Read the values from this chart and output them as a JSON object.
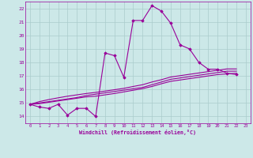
{
  "xlabel": "Windchill (Refroidissement éolien,°C)",
  "xlim": [
    -0.5,
    23.5
  ],
  "ylim": [
    13.5,
    22.5
  ],
  "yticks": [
    14,
    15,
    16,
    17,
    18,
    19,
    20,
    21,
    22
  ],
  "xticks": [
    0,
    1,
    2,
    3,
    4,
    5,
    6,
    7,
    8,
    9,
    10,
    11,
    12,
    13,
    14,
    15,
    16,
    17,
    18,
    19,
    20,
    21,
    22,
    23
  ],
  "bg_color": "#cce8e8",
  "grid_color": "#aacccc",
  "line_color": "#990099",
  "marker": "D",
  "markersize": 1.8,
  "linewidth": 0.8,
  "series": [
    [
      14.9,
      14.7,
      14.6,
      14.9,
      14.1,
      14.6,
      14.6,
      14.0,
      18.7,
      18.5,
      16.9,
      21.1,
      21.1,
      22.2,
      21.8,
      20.9,
      19.3,
      19.0,
      18.0,
      17.5,
      17.5,
      17.2,
      17.1
    ],
    [
      14.9,
      14.95,
      15.05,
      15.15,
      15.25,
      15.35,
      15.45,
      15.5,
      15.6,
      15.7,
      15.82,
      15.94,
      16.06,
      16.22,
      16.42,
      16.6,
      16.7,
      16.8,
      16.9,
      17.0,
      17.1,
      17.15,
      17.2
    ],
    [
      14.9,
      15.0,
      15.1,
      15.2,
      15.3,
      15.4,
      15.55,
      15.65,
      15.75,
      15.85,
      15.95,
      16.05,
      16.15,
      16.35,
      16.55,
      16.75,
      16.85,
      16.95,
      17.05,
      17.15,
      17.25,
      17.35,
      17.35
    ],
    [
      14.9,
      15.1,
      15.25,
      15.38,
      15.5,
      15.6,
      15.7,
      15.78,
      15.88,
      15.98,
      16.08,
      16.22,
      16.35,
      16.55,
      16.72,
      16.92,
      17.02,
      17.12,
      17.22,
      17.32,
      17.42,
      17.52,
      17.52
    ]
  ]
}
